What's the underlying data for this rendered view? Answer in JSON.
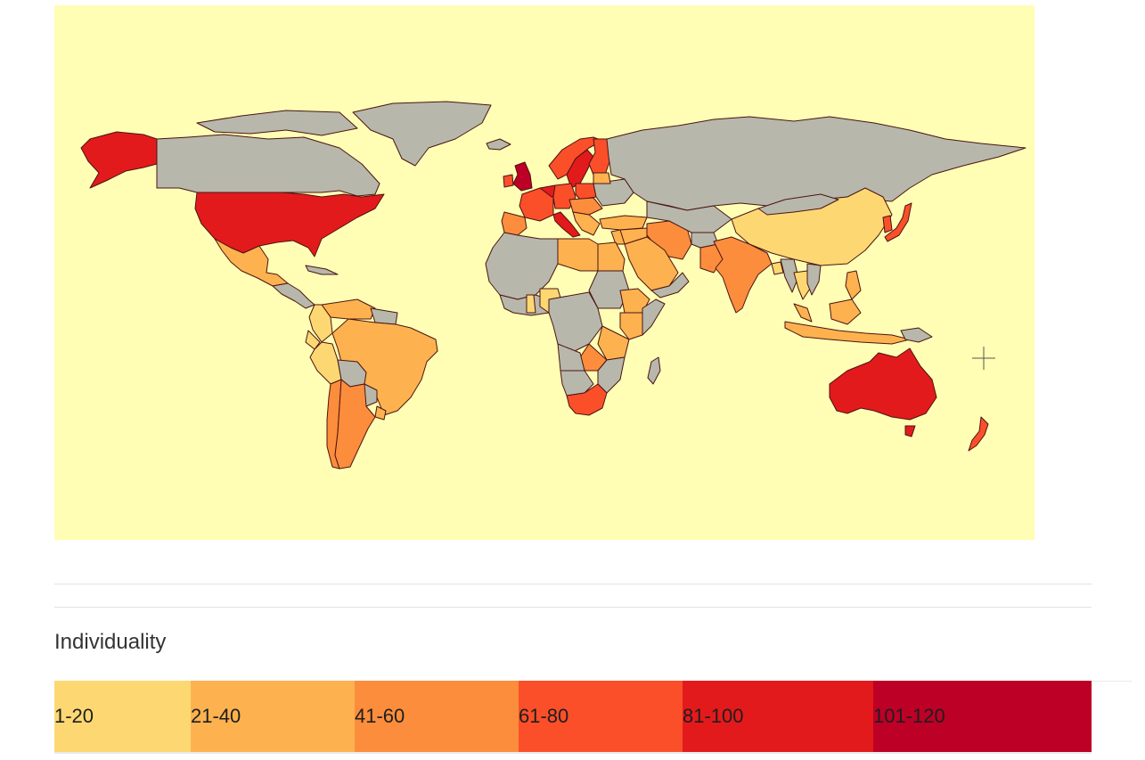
{
  "map": {
    "background_color": "#fffeb4",
    "no_data_color": "#b8b7ab",
    "border_color": "#4a1414",
    "cursor_icon": "crosshair-icon"
  },
  "legend": {
    "title": "Individuality",
    "bins": [
      {
        "label": "1-20",
        "color": "#fdd872",
        "share": 0.1315
      },
      {
        "label": "21-40",
        "color": "#fdb24f",
        "share": 0.1581
      },
      {
        "label": "41-60",
        "color": "#fc8d3c",
        "share": 0.1581
      },
      {
        "label": "61-80",
        "color": "#fb4f2a",
        "share": 0.1581
      },
      {
        "label": "81-100",
        "color": "#e31a1c",
        "share": 0.1838
      },
      {
        "label": "101-120",
        "color": "#bd0026",
        "share": 0.2104
      }
    ]
  }
}
